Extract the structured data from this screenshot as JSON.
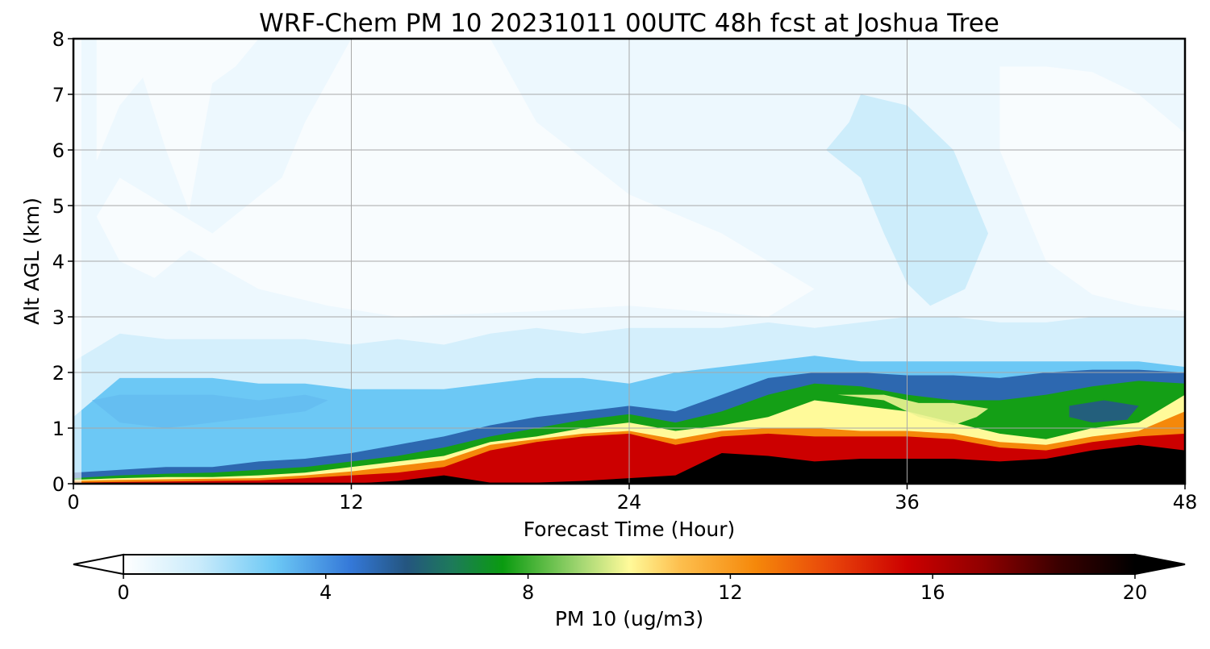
{
  "chart_data": {
    "type": "heatmap",
    "title": "WRF-Chem PM 10  20231011 00UTC 48h fcst at Joshua Tree",
    "xlabel": "Forecast Time (Hour)",
    "ylabel": "Alt AGL (km)",
    "xlim": [
      0,
      48
    ],
    "ylim": [
      0,
      8
    ],
    "xticks": [
      "0",
      "12",
      "24",
      "36",
      "48"
    ],
    "yticks": [
      "0",
      "1",
      "2",
      "3",
      "4",
      "5",
      "6",
      "7",
      "8"
    ],
    "grid": true,
    "colorbar": {
      "label": "PM 10  (ug/m3)",
      "range": [
        0,
        20
      ],
      "ticks": [
        "0",
        "4",
        "8",
        "12",
        "16",
        "20"
      ],
      "extend": "both",
      "stops": [
        {
          "v": 0,
          "c": "#ffffff"
        },
        {
          "v": 1.5,
          "c": "#c9ebfb"
        },
        {
          "v": 3,
          "c": "#6cc8f5"
        },
        {
          "v": 4.5,
          "c": "#3478d8"
        },
        {
          "v": 5.6,
          "c": "#24557f"
        },
        {
          "v": 6.5,
          "c": "#1d7a5a"
        },
        {
          "v": 7.5,
          "c": "#0a9b10"
        },
        {
          "v": 9,
          "c": "#9fd570"
        },
        {
          "v": 10,
          "c": "#fffa9a"
        },
        {
          "v": 11,
          "c": "#fdbf4e"
        },
        {
          "v": 12.5,
          "c": "#f5880a"
        },
        {
          "v": 14,
          "c": "#e8440a"
        },
        {
          "v": 15.5,
          "c": "#cc0000"
        },
        {
          "v": 17,
          "c": "#900000"
        },
        {
          "v": 18.5,
          "c": "#3a0000"
        },
        {
          "v": 20,
          "c": "#000000"
        }
      ]
    },
    "times": [
      0,
      2,
      4,
      6,
      8,
      10,
      12,
      14,
      16,
      18,
      20,
      22,
      24,
      26,
      28,
      30,
      32,
      34,
      36,
      38,
      40,
      42,
      44,
      46,
      48
    ],
    "layers": [
      {
        "name": "layer-background",
        "value": 0.5,
        "top": [
          8,
          8,
          8,
          8,
          8,
          8,
          8,
          8,
          8,
          8,
          8,
          8,
          8,
          8,
          8,
          8,
          8,
          8,
          8,
          8,
          8,
          8,
          8,
          8,
          8
        ]
      },
      {
        "name": "layer-1ug",
        "value": 1.2,
        "top": [
          2.2,
          2.7,
          2.6,
          2.6,
          2.6,
          2.6,
          2.5,
          2.6,
          2.5,
          2.7,
          2.8,
          2.7,
          2.8,
          2.8,
          2.8,
          2.9,
          2.8,
          2.9,
          3.0,
          3.0,
          2.9,
          2.9,
          3.0,
          3.0,
          3.0
        ]
      },
      {
        "name": "layer-3ug",
        "value": 3.0,
        "top": [
          1.2,
          1.9,
          1.9,
          1.9,
          1.8,
          1.8,
          1.7,
          1.7,
          1.7,
          1.8,
          1.9,
          1.9,
          1.8,
          2.0,
          2.1,
          2.2,
          2.3,
          2.2,
          2.2,
          2.2,
          2.2,
          2.2,
          2.2,
          2.2,
          2.1
        ]
      },
      {
        "name": "layer-5ug",
        "value": 5.0,
        "top": [
          0.2,
          0.25,
          0.3,
          0.3,
          0.4,
          0.45,
          0.55,
          0.7,
          0.85,
          1.05,
          1.2,
          1.3,
          1.4,
          1.3,
          1.6,
          1.9,
          2.0,
          2.0,
          1.95,
          1.95,
          1.9,
          2.0,
          2.05,
          2.05,
          2.0
        ]
      },
      {
        "name": "layer-8ug",
        "value": 7.6,
        "top": [
          0.1,
          0.15,
          0.18,
          0.2,
          0.25,
          0.3,
          0.4,
          0.5,
          0.65,
          0.85,
          1.0,
          1.15,
          1.25,
          1.1,
          1.3,
          1.6,
          1.8,
          1.75,
          1.6,
          1.5,
          1.5,
          1.6,
          1.75,
          1.85,
          1.8
        ]
      },
      {
        "name": "layer-10ug",
        "value": 10.0,
        "top": [
          0.07,
          0.1,
          0.12,
          0.12,
          0.15,
          0.2,
          0.3,
          0.4,
          0.5,
          0.75,
          0.85,
          1.0,
          1.1,
          0.95,
          1.05,
          1.2,
          1.5,
          1.4,
          1.3,
          1.1,
          0.9,
          0.8,
          1.0,
          1.1,
          1.6
        ]
      },
      {
        "name": "layer-12ug",
        "value": 12.5,
        "top": [
          0.05,
          0.07,
          0.08,
          0.09,
          0.1,
          0.15,
          0.22,
          0.32,
          0.42,
          0.7,
          0.8,
          0.9,
          0.95,
          0.8,
          0.95,
          1.0,
          1.0,
          0.95,
          0.95,
          0.9,
          0.75,
          0.7,
          0.85,
          0.95,
          1.3
        ]
      },
      {
        "name": "layer-15ug",
        "value": 15.5,
        "top": [
          0.02,
          0.03,
          0.04,
          0.05,
          0.06,
          0.1,
          0.15,
          0.2,
          0.3,
          0.6,
          0.75,
          0.85,
          0.9,
          0.7,
          0.85,
          0.9,
          0.85,
          0.85,
          0.85,
          0.8,
          0.65,
          0.6,
          0.75,
          0.85,
          0.9
        ]
      },
      {
        "name": "layer-20ug",
        "value": 20.0,
        "top": [
          0,
          0,
          0,
          0,
          0,
          0,
          0,
          0.05,
          0.15,
          0.02,
          0.02,
          0.05,
          0.1,
          0.15,
          0.55,
          0.5,
          0.4,
          0.45,
          0.45,
          0.45,
          0.4,
          0.45,
          0.6,
          0.7,
          0.6
        ]
      }
    ],
    "patches": [
      {
        "name": "patch-cleaner-air-upper-left",
        "value": 0.2,
        "points": [
          [
            1,
            8
          ],
          [
            1,
            5.8
          ],
          [
            2,
            6.8
          ],
          [
            3,
            7.3
          ],
          [
            4,
            6
          ],
          [
            5,
            4.9
          ],
          [
            6,
            7.2
          ],
          [
            7,
            7.5
          ],
          [
            8,
            8
          ]
        ]
      },
      {
        "name": "patch-cleaner-air-mid",
        "value": 0.2,
        "points": [
          [
            1,
            4.8
          ],
          [
            2,
            4
          ],
          [
            3.5,
            3.7
          ],
          [
            5,
            4.2
          ],
          [
            8,
            3.5
          ],
          [
            11,
            3.2
          ],
          [
            14,
            3.0
          ],
          [
            20,
            3.1
          ],
          [
            24,
            3.2
          ],
          [
            30,
            3.0
          ],
          [
            32,
            3.5
          ],
          [
            28,
            4.5
          ],
          [
            24,
            5.2
          ],
          [
            20,
            6.5
          ],
          [
            18,
            8
          ],
          [
            12,
            8
          ],
          [
            10,
            6.5
          ],
          [
            9,
            5.5
          ],
          [
            6,
            4.5
          ],
          [
            4,
            5
          ],
          [
            2,
            5.5
          ]
        ]
      },
      {
        "name": "patch-cleaner-air-right",
        "value": 0.2,
        "points": [
          [
            40,
            7.5
          ],
          [
            42,
            7.5
          ],
          [
            44,
            7.4
          ],
          [
            46,
            7
          ],
          [
            48,
            6.3
          ],
          [
            48,
            3.1
          ],
          [
            46,
            3.2
          ],
          [
            44,
            3.4
          ],
          [
            42,
            4
          ],
          [
            41,
            5
          ],
          [
            40,
            6
          ]
        ]
      },
      {
        "name": "patch-haze-center",
        "value": 1.5,
        "points": [
          [
            34,
            7
          ],
          [
            36,
            6.8
          ],
          [
            38,
            6
          ],
          [
            39.5,
            4.5
          ],
          [
            38.5,
            3.5
          ],
          [
            37,
            3.2
          ],
          [
            36,
            3.6
          ],
          [
            35,
            4.5
          ],
          [
            34,
            5.5
          ],
          [
            32.5,
            6
          ],
          [
            33.5,
            6.5
          ]
        ]
      },
      {
        "name": "patch-blue-lower-left",
        "value": 3.2,
        "points": [
          [
            0.8,
            1.5
          ],
          [
            2,
            1.1
          ],
          [
            4,
            1.0
          ],
          [
            6,
            1.1
          ],
          [
            8,
            1.2
          ],
          [
            10,
            1.3
          ],
          [
            11,
            1.5
          ],
          [
            10,
            1.6
          ],
          [
            8,
            1.5
          ],
          [
            6,
            1.6
          ],
          [
            4,
            1.6
          ],
          [
            2,
            1.6
          ]
        ]
      },
      {
        "name": "patch-yellow-core",
        "value": 9.8,
        "points": [
          [
            33,
            1.6
          ],
          [
            35,
            1.5
          ],
          [
            36.5,
            1.2
          ],
          [
            38,
            1.05
          ],
          [
            39,
            1.2
          ],
          [
            39.5,
            1.35
          ],
          [
            38,
            1.45
          ],
          [
            36.5,
            1.45
          ],
          [
            35,
            1.6
          ]
        ]
      },
      {
        "name": "patch-teal-core",
        "value": 5.5,
        "points": [
          [
            43,
            1.4
          ],
          [
            44.5,
            1.5
          ],
          [
            46,
            1.4
          ],
          [
            45.5,
            1.15
          ],
          [
            44,
            1.1
          ],
          [
            43,
            1.2
          ]
        ]
      }
    ]
  }
}
